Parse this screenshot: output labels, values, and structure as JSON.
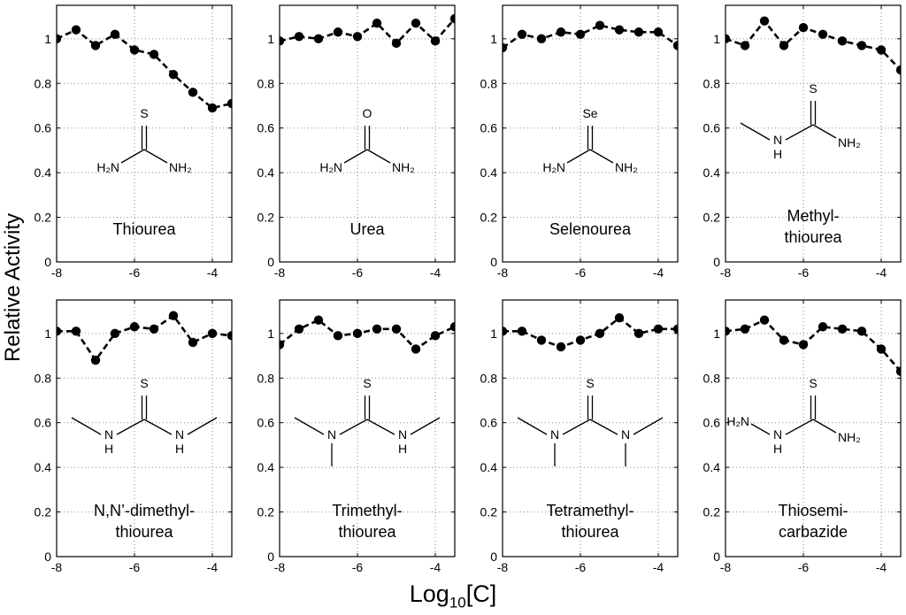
{
  "figure": {
    "ylabel": "Relative Activity",
    "xlabel_base": "Log",
    "xlabel_sub": "10",
    "xlabel_arg": "[C]"
  },
  "chart_data": [
    {
      "type": "line",
      "label_lines": [
        "Thiourea"
      ],
      "formula": "thiourea",
      "atom_labels": [
        "S",
        "H₂N",
        "NH₂"
      ],
      "x": [
        -8,
        -7.5,
        -7,
        -6.5,
        -6,
        -5.5,
        -5,
        -4.5,
        -4,
        -3.5
      ],
      "values": [
        1.0,
        1.04,
        0.97,
        1.02,
        0.95,
        0.93,
        0.84,
        0.76,
        0.69,
        0.71
      ],
      "xlim": [
        -8,
        -3.5
      ],
      "ylim": [
        0,
        1.15
      ],
      "xticks": [
        -8,
        -6,
        -4
      ],
      "yticks": [
        0,
        0.2,
        0.4,
        0.6,
        0.8,
        1
      ],
      "xtick_labels": [
        "-8",
        "-6",
        "-4"
      ],
      "ytick_labels": [
        "0",
        "0.2",
        "0.4",
        "0.6",
        "0.8",
        "1"
      ]
    },
    {
      "type": "line",
      "label_lines": [
        "Urea"
      ],
      "formula": "urea",
      "atom_labels": [
        "O",
        "H₂N",
        "NH₂"
      ],
      "x": [
        -8,
        -7.5,
        -7,
        -6.5,
        -6,
        -5.5,
        -5,
        -4.5,
        -4,
        -3.5
      ],
      "values": [
        0.99,
        1.01,
        1.0,
        1.03,
        1.01,
        1.07,
        0.98,
        1.07,
        0.99,
        1.09
      ],
      "xlim": [
        -8,
        -3.5
      ],
      "ylim": [
        0,
        1.15
      ],
      "xticks": [
        -8,
        -6,
        -4
      ],
      "yticks": [
        0,
        0.2,
        0.4,
        0.6,
        0.8,
        1
      ],
      "xtick_labels": [
        "-8",
        "-6",
        "-4"
      ],
      "ytick_labels": [
        "0",
        "0.2",
        "0.4",
        "0.6",
        "0.8",
        "1"
      ]
    },
    {
      "type": "line",
      "label_lines": [
        "Selenourea"
      ],
      "formula": "selenourea",
      "atom_labels": [
        "Se",
        "H₂N",
        "NH₂"
      ],
      "x": [
        -8,
        -7.5,
        -7,
        -6.5,
        -6,
        -5.5,
        -5,
        -4.5,
        -4,
        -3.5
      ],
      "values": [
        0.96,
        1.02,
        1.0,
        1.03,
        1.02,
        1.06,
        1.04,
        1.03,
        1.03,
        0.97
      ],
      "xlim": [
        -8,
        -3.5
      ],
      "ylim": [
        0,
        1.15
      ],
      "xticks": [
        -8,
        -6,
        -4
      ],
      "yticks": [
        0,
        0.2,
        0.4,
        0.6,
        0.8,
        1
      ],
      "xtick_labels": [
        "-8",
        "-6",
        "-4"
      ],
      "ytick_labels": [
        "0",
        "0.2",
        "0.4",
        "0.6",
        "0.8",
        "1"
      ]
    },
    {
      "type": "line",
      "label_lines": [
        "Methyl-",
        "thiourea"
      ],
      "formula": "methylthiourea",
      "atom_labels": [
        "S",
        "N",
        "H",
        "NH₂"
      ],
      "x": [
        -8,
        -7.5,
        -7,
        -6.5,
        -6,
        -5.5,
        -5,
        -4.5,
        -4,
        -3.5
      ],
      "values": [
        1.0,
        0.97,
        1.08,
        0.97,
        1.05,
        1.02,
        0.99,
        0.97,
        0.95,
        0.86
      ],
      "xlim": [
        -8,
        -3.5
      ],
      "ylim": [
        0,
        1.15
      ],
      "xticks": [
        -8,
        -6,
        -4
      ],
      "yticks": [
        0,
        0.2,
        0.4,
        0.6,
        0.8,
        1
      ],
      "xtick_labels": [
        "-8",
        "-6",
        "-4"
      ],
      "ytick_labels": [
        "0",
        "0.2",
        "0.4",
        "0.6",
        "0.8",
        "1"
      ]
    },
    {
      "type": "line",
      "label_lines": [
        "N,N’-dimethyl-",
        "thiourea"
      ],
      "formula": "dimethylthiourea",
      "atom_labels": [
        "S",
        "N",
        "H",
        "N",
        "H"
      ],
      "x": [
        -8,
        -7.5,
        -7,
        -6.5,
        -6,
        -5.5,
        -5,
        -4.5,
        -4,
        -3.5
      ],
      "values": [
        1.01,
        1.01,
        0.88,
        1.0,
        1.03,
        1.02,
        1.08,
        0.96,
        1.0,
        0.99
      ],
      "xlim": [
        -8,
        -3.5
      ],
      "ylim": [
        0,
        1.15
      ],
      "xticks": [
        -8,
        -6,
        -4
      ],
      "yticks": [
        0,
        0.2,
        0.4,
        0.6,
        0.8,
        1
      ],
      "xtick_labels": [
        "-8",
        "-6",
        "-4"
      ],
      "ytick_labels": [
        "0",
        "0.2",
        "0.4",
        "0.6",
        "0.8",
        "1"
      ]
    },
    {
      "type": "line",
      "label_lines": [
        "Trimethyl-",
        "thiourea"
      ],
      "formula": "trimethylthiourea",
      "atom_labels": [
        "S",
        "N",
        "N",
        "H"
      ],
      "x": [
        -8,
        -7.5,
        -7,
        -6.5,
        -6,
        -5.5,
        -5,
        -4.5,
        -4,
        -3.5
      ],
      "values": [
        0.95,
        1.02,
        1.06,
        0.99,
        1.0,
        1.02,
        1.02,
        0.93,
        0.99,
        1.03
      ],
      "xlim": [
        -8,
        -3.5
      ],
      "ylim": [
        0,
        1.15
      ],
      "xticks": [
        -8,
        -6,
        -4
      ],
      "yticks": [
        0,
        0.2,
        0.4,
        0.6,
        0.8,
        1
      ],
      "xtick_labels": [
        "-8",
        "-6",
        "-4"
      ],
      "ytick_labels": [
        "0",
        "0.2",
        "0.4",
        "0.6",
        "0.8",
        "1"
      ]
    },
    {
      "type": "line",
      "label_lines": [
        "Tetramethyl-",
        "thiourea"
      ],
      "formula": "tetramethylthiourea",
      "atom_labels": [
        "S",
        "N",
        "N"
      ],
      "x": [
        -8,
        -7.5,
        -7,
        -6.5,
        -6,
        -5.5,
        -5,
        -4.5,
        -4,
        -3.5
      ],
      "values": [
        1.01,
        1.01,
        0.97,
        0.94,
        0.97,
        1.0,
        1.07,
        1.0,
        1.02,
        1.02
      ],
      "xlim": [
        -8,
        -3.5
      ],
      "ylim": [
        0,
        1.15
      ],
      "xticks": [
        -8,
        -6,
        -4
      ],
      "yticks": [
        0,
        0.2,
        0.4,
        0.6,
        0.8,
        1
      ],
      "xtick_labels": [
        "-8",
        "-6",
        "-4"
      ],
      "ytick_labels": [
        "0",
        "0.2",
        "0.4",
        "0.6",
        "0.8",
        "1"
      ]
    },
    {
      "type": "line",
      "label_lines": [
        "Thiosemi-",
        "carbazide"
      ],
      "formula": "thiosemicarbazide",
      "atom_labels": [
        "S",
        "H₂N",
        "N",
        "H",
        "NH₂"
      ],
      "x": [
        -8,
        -7.5,
        -7,
        -6.5,
        -6,
        -5.5,
        -5,
        -4.5,
        -4,
        -3.5
      ],
      "values": [
        1.01,
        1.02,
        1.06,
        0.97,
        0.95,
        1.03,
        1.02,
        1.01,
        0.93,
        0.83
      ],
      "xlim": [
        -8,
        -3.5
      ],
      "ylim": [
        0,
        1.15
      ],
      "xticks": [
        -8,
        -6,
        -4
      ],
      "yticks": [
        0,
        0.2,
        0.4,
        0.6,
        0.8,
        1
      ],
      "xtick_labels": [
        "-8",
        "-6",
        "-4"
      ],
      "ytick_labels": [
        "0",
        "0.2",
        "0.4",
        "0.6",
        "0.8",
        "1"
      ]
    }
  ]
}
